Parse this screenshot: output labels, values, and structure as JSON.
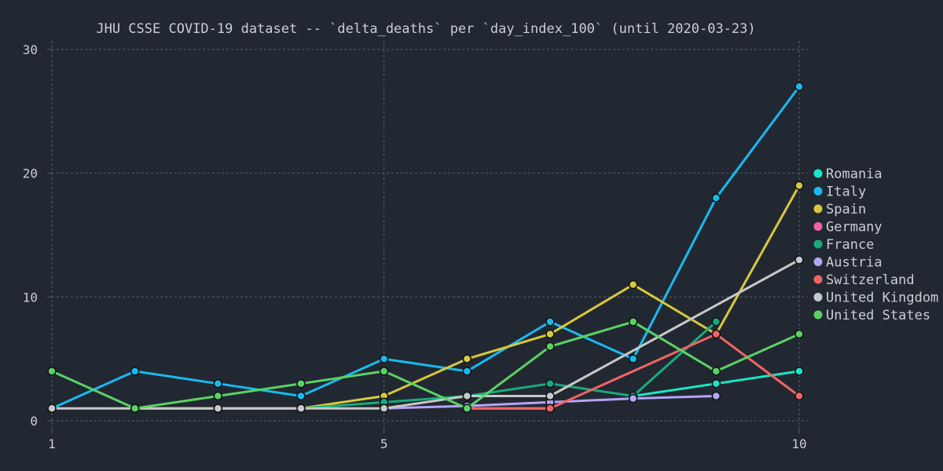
{
  "chart_data": {
    "type": "line",
    "title": "JHU CSSE COVID-19 dataset -- `delta_deaths` per `day_index_100` (until 2020-03-23)",
    "xlabel": "",
    "ylabel": "",
    "xlim": [
      1,
      10
    ],
    "ylim": [
      0,
      30
    ],
    "x_ticks": [
      1,
      5,
      10
    ],
    "y_ticks": [
      0,
      10,
      20,
      30
    ],
    "grid": true,
    "legend_position": "right",
    "series": [
      {
        "name": "Romania",
        "color": "#19e6c8",
        "x": [
          8,
          9,
          10
        ],
        "y": [
          2,
          3,
          4
        ]
      },
      {
        "name": "Italy",
        "color": "#19b9f0",
        "x": [
          1,
          2,
          3,
          4,
          5,
          6,
          7,
          8,
          9,
          10
        ],
        "y": [
          1,
          4,
          3,
          2,
          5,
          4,
          8,
          5,
          18,
          27
        ]
      },
      {
        "name": "Spain",
        "color": "#d7c83c",
        "x": [
          2,
          3,
          4,
          5,
          6,
          7,
          8,
          9,
          10
        ],
        "y": [
          1,
          1,
          1,
          2,
          5,
          7,
          11,
          7,
          19
        ]
      },
      {
        "name": "Germany",
        "color": "#f062a8",
        "x": [
          6,
          7
        ],
        "y": [
          1,
          1
        ]
      },
      {
        "name": "France",
        "color": "#19aa7d",
        "x": [
          3,
          4,
          5,
          6,
          7,
          8,
          9
        ],
        "y": [
          1,
          1,
          1.5,
          2,
          3,
          2,
          8
        ]
      },
      {
        "name": "Austria",
        "color": "#b4a5f5",
        "x": [
          5,
          6,
          7,
          8,
          9
        ],
        "y": [
          1,
          1.2,
          1.5,
          1.8,
          2
        ]
      },
      {
        "name": "Switzerland",
        "color": "#f06464",
        "x": [
          6,
          7,
          9,
          10
        ],
        "y": [
          1,
          1,
          7,
          2
        ]
      },
      {
        "name": "United Kingdom",
        "color": "#c8c8c8",
        "x": [
          1,
          2,
          3,
          4,
          5,
          6,
          7,
          10
        ],
        "y": [
          1,
          1,
          1,
          1,
          1,
          2,
          2,
          13
        ]
      },
      {
        "name": "United States",
        "color": "#5ad264",
        "x": [
          1,
          2,
          3,
          4,
          5,
          6,
          7,
          8,
          9,
          10
        ],
        "y": [
          4,
          1,
          2,
          3,
          4,
          1,
          6,
          8,
          4,
          7
        ]
      }
    ]
  }
}
